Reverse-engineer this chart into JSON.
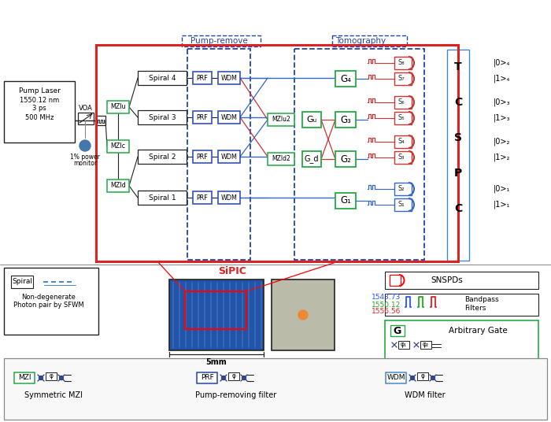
{
  "bg_color": "#ffffff",
  "main_box_color": "#dd2222",
  "green_box": "#22aa44",
  "blue_box": "#2244aa",
  "light_blue": "#4488cc",
  "blue_line": "#3366cc",
  "red_line": "#cc3333",
  "dark": "#222222",
  "gray": "#888888",
  "sipic_color": "#dd2222",
  "wavelength_colors": [
    "#2255ff",
    "#22aa22",
    "#dd2222"
  ],
  "wavelengths": [
    "1543.73",
    "1550.12",
    "1556.56"
  ]
}
